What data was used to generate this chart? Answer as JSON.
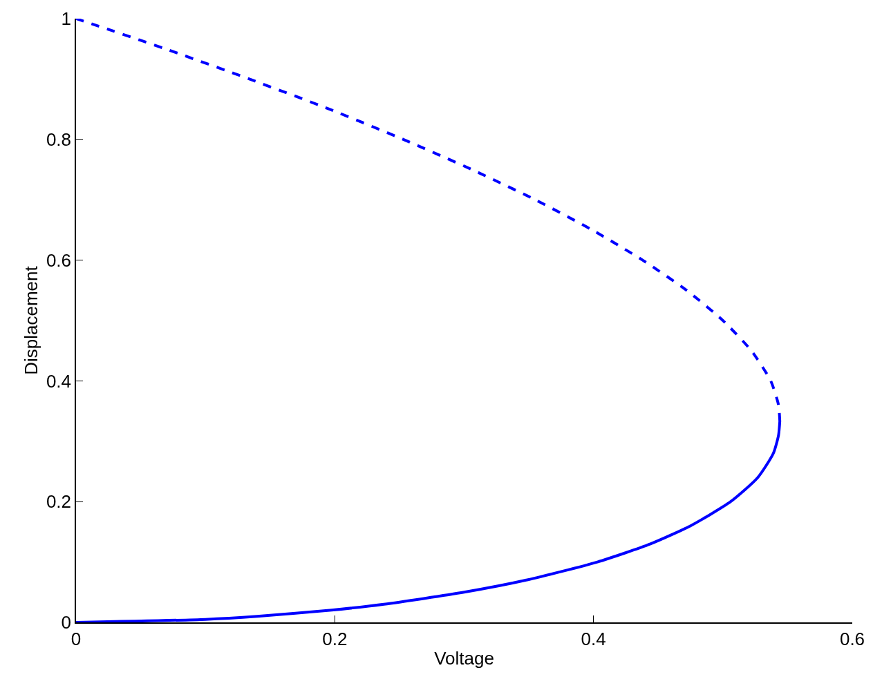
{
  "chart_data": {
    "type": "line",
    "xlabel": "Voltage",
    "ylabel": "Displacement",
    "xlim": [
      0,
      0.6
    ],
    "xticks": [
      0,
      0.2,
      0.4,
      0.6
    ],
    "ylim": [
      0,
      1
    ],
    "yticks": [
      0,
      0.2,
      0.4,
      0.6,
      0.8,
      1
    ],
    "legend": false,
    "series": [
      {
        "color": "#0000ff",
        "line_style": "solid",
        "x": [
          0,
          0.1,
          0.14,
          0.196,
          0.238,
          0.3,
          0.348,
          0.403,
          0.444,
          0.475,
          0.506,
          0.527,
          0.539,
          0.543,
          0.544
        ],
        "values": [
          0,
          0.005,
          0.01,
          0.02,
          0.03,
          0.05,
          0.07,
          0.1,
          0.13,
          0.16,
          0.2,
          0.24,
          0.28,
          0.31,
          0.333
        ]
      },
      {
        "color": "#0000ff",
        "line_style": "dashed",
        "x": [
          0.544,
          0.543,
          0.537,
          0.522,
          0.5,
          0.472,
          0.438,
          0.399,
          0.355,
          0.306,
          0.253,
          0.196,
          0.134,
          0.069,
          0.028,
          0
        ],
        "values": [
          0.333,
          0.36,
          0.4,
          0.45,
          0.5,
          0.55,
          0.6,
          0.65,
          0.7,
          0.75,
          0.8,
          0.85,
          0.9,
          0.95,
          0.98,
          1
        ]
      }
    ]
  }
}
